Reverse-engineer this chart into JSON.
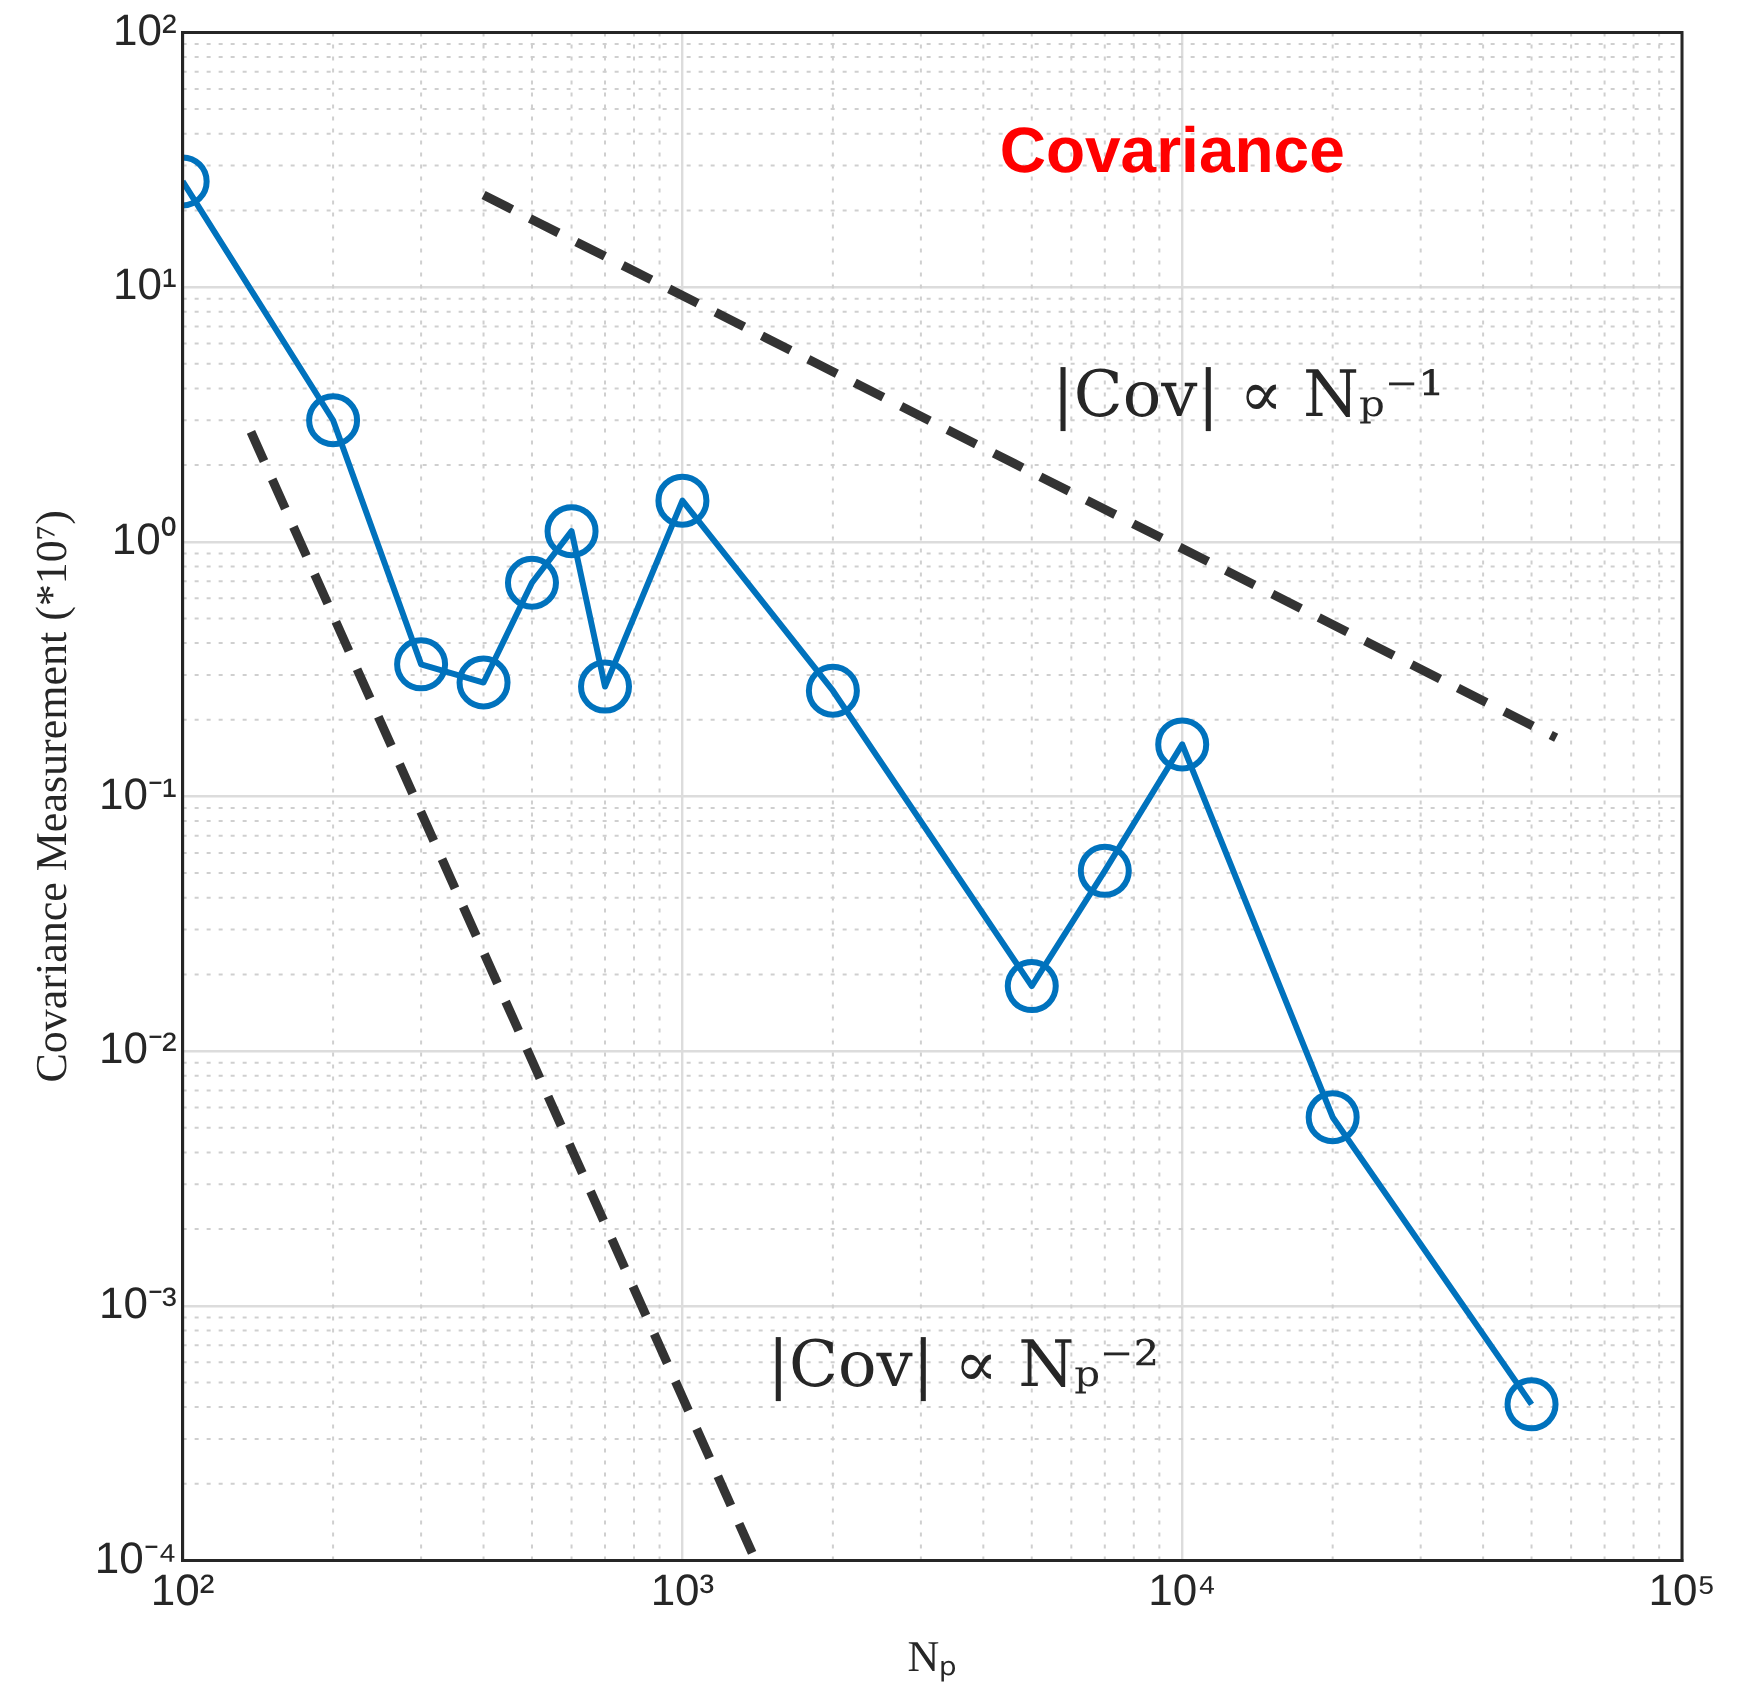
{
  "chart_data": {
    "type": "line",
    "xlabel": "Nₚ",
    "ylabel": "Covariance Measurement (*10⁷)",
    "log": "xy",
    "grid": true,
    "legend": false,
    "marker": "circle",
    "xlim": [
      100,
      100000
    ],
    "ylim": [
      0.0001,
      100
    ],
    "xticks": [
      {
        "value": 100,
        "label": "10²"
      },
      {
        "value": 1000,
        "label": "10³"
      },
      {
        "value": 10000,
        "label": "10⁴"
      },
      {
        "value": 100000,
        "label": "10⁵"
      }
    ],
    "yticks": [
      {
        "value": 0.0001,
        "label": "10⁻⁴"
      },
      {
        "value": 0.001,
        "label": "10⁻³"
      },
      {
        "value": 0.01,
        "label": "10⁻²"
      },
      {
        "value": 0.1,
        "label": "10⁻¹"
      },
      {
        "value": 1,
        "label": "10⁰"
      },
      {
        "value": 10,
        "label": "10¹"
      },
      {
        "value": 100,
        "label": "10²"
      }
    ],
    "series": [
      {
        "color": "#0072bd",
        "x": [
          100,
          200,
          300,
          400,
          500,
          600,
          700,
          1000,
          2000,
          5000,
          7000,
          10000,
          20000,
          50000
        ],
        "values": [
          26,
          3.0,
          0.33,
          0.28,
          0.69,
          1.1,
          0.27,
          1.45,
          0.26,
          0.018,
          0.051,
          0.16,
          0.0055,
          0.00041
        ],
        "line_style": "solid"
      },
      {
        "color": "#333333",
        "x": [
          400,
          56000
        ],
        "values": [
          23,
          0.17
        ],
        "marker": "none",
        "line_style": "dashed"
      },
      {
        "color": "#333333",
        "x": [
          137,
          1400
        ],
        "values": [
          2.7,
          0.0001
        ],
        "marker": "none",
        "line_style": "dashed"
      }
    ],
    "annotations": [
      "Covariance",
      "|Cov| ∝ Nₚ⁻¹",
      "|Cov| ∝ Nₚ⁻²"
    ]
  }
}
